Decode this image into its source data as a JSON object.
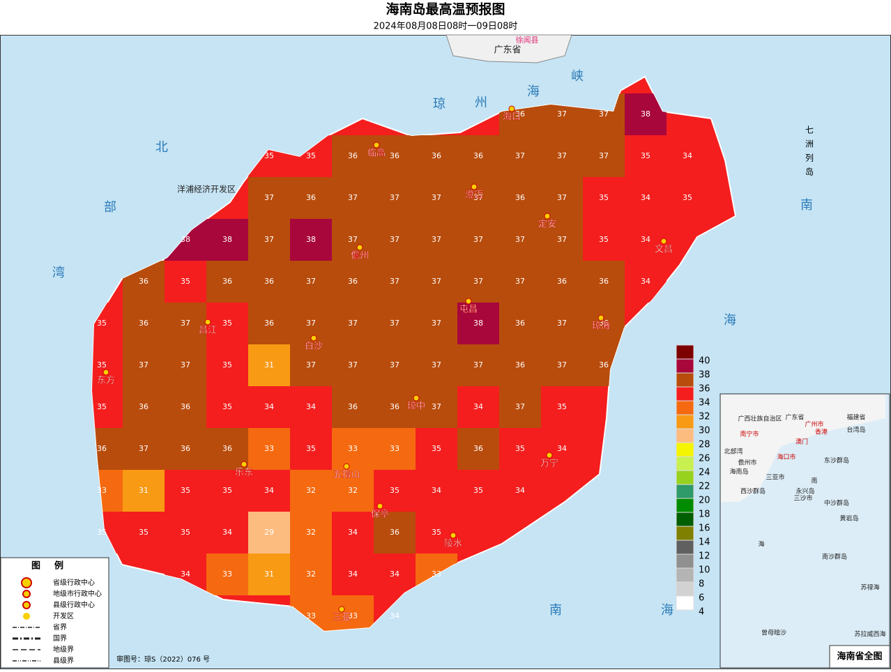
{
  "header": {
    "title": "海南岛最高温预报图",
    "subtitle": "2024年08月08日08时一09日08时"
  },
  "map": {
    "temperature_grid": [
      [
        null,
        null,
        null,
        null,
        null,
        null,
        null,
        null,
        null,
        null,
        36,
        37,
        37,
        38,
        null,
        null
      ],
      [
        null,
        null,
        null,
        null,
        35,
        35,
        36,
        36,
        36,
        36,
        37,
        37,
        37,
        35,
        34,
        null
      ],
      [
        null,
        null,
        null,
        null,
        37,
        36,
        37,
        37,
        37,
        37,
        36,
        37,
        35,
        34,
        35,
        null
      ],
      [
        null,
        null,
        38,
        38,
        37,
        38,
        37,
        37,
        37,
        37,
        37,
        37,
        35,
        34,
        null,
        null
      ],
      [
        null,
        36,
        35,
        36,
        36,
        37,
        36,
        37,
        37,
        37,
        37,
        36,
        36,
        34,
        null,
        null
      ],
      [
        35,
        36,
        37,
        35,
        36,
        37,
        37,
        37,
        37,
        38,
        36,
        37,
        36,
        null,
        null,
        null
      ],
      [
        35,
        37,
        37,
        35,
        31,
        37,
        37,
        37,
        37,
        37,
        36,
        37,
        36,
        null,
        null,
        null
      ],
      [
        35,
        36,
        36,
        35,
        34,
        34,
        36,
        36,
        37,
        34,
        37,
        35,
        null,
        null,
        null,
        null
      ],
      [
        36,
        37,
        36,
        36,
        33,
        35,
        33,
        33,
        35,
        36,
        35,
        34,
        null,
        null,
        null,
        null
      ],
      [
        33,
        31,
        35,
        35,
        34,
        32,
        32,
        35,
        34,
        35,
        34,
        null,
        null,
        null,
        null,
        null
      ],
      [
        35,
        35,
        35,
        34,
        29,
        32,
        34,
        36,
        35,
        null,
        null,
        null,
        null,
        null,
        null,
        null
      ],
      [
        null,
        null,
        34,
        33,
        31,
        32,
        34,
        34,
        33,
        null,
        null,
        null,
        null,
        null,
        null,
        null
      ],
      [
        null,
        null,
        null,
        null,
        null,
        33,
        33,
        34,
        null,
        null,
        null,
        null,
        null,
        null,
        null,
        null
      ]
    ],
    "cities": [
      "海口",
      "临高",
      "澄迈",
      "定安",
      "文昌",
      "儋州",
      "屯昌",
      "琼海",
      "昌江",
      "白沙",
      "东方",
      "琼中",
      "万宁",
      "乐东",
      "五指山",
      "保亭",
      "陵水",
      "三亚"
    ],
    "places": [
      "洋浦经济开发区",
      "广东省",
      "徐闻县"
    ],
    "sea_labels": [
      "琼",
      "州",
      "海",
      "峡",
      "北",
      "部",
      "湾",
      "南",
      "海",
      "南",
      "海"
    ],
    "islands": "七洲列岛"
  },
  "color_scale": {
    "levels": [
      40,
      38,
      36,
      34,
      32,
      30,
      28,
      26,
      24,
      22,
      20,
      18,
      16,
      14,
      12,
      10,
      8,
      6,
      4
    ],
    "colors": [
      "#7d0000",
      "#a8073c",
      "#b84c0c",
      "#f41e1e",
      "#f56a10",
      "#f89a14",
      "#fcbc80",
      "#f5f500",
      "#c8f050",
      "#96d21e",
      "#2f9a6a",
      "#008c00",
      "#005f00",
      "#7f7f00",
      "#606060",
      "#909090",
      "#b4b4b4",
      "#d2d2d2",
      "#ffffff"
    ]
  },
  "legend": {
    "title": "图例",
    "items": [
      "省级行政中心",
      "地级市行政中心",
      "县级行政中心",
      "开发区",
      "省界",
      "国界",
      "地级界",
      "县级界"
    ]
  },
  "inset": {
    "title": "海南省全图",
    "labels": [
      "广西壮族自治区",
      "广东省",
      "福建省",
      "南宁市",
      "广州市",
      "香港",
      "澳门",
      "台湾岛",
      "北部湾",
      "海口市",
      "儋州市",
      "海南岛",
      "三亚市",
      "东沙群岛",
      "西沙群岛",
      "永兴岛",
      "三沙市",
      "中沙群岛",
      "黄岩岛",
      "南",
      "海",
      "南沙群岛",
      "曾母暗沙",
      "苏禄海",
      "苏拉威西海"
    ]
  },
  "footer": {
    "approval": "审图号：琼S（2022）076 号"
  }
}
